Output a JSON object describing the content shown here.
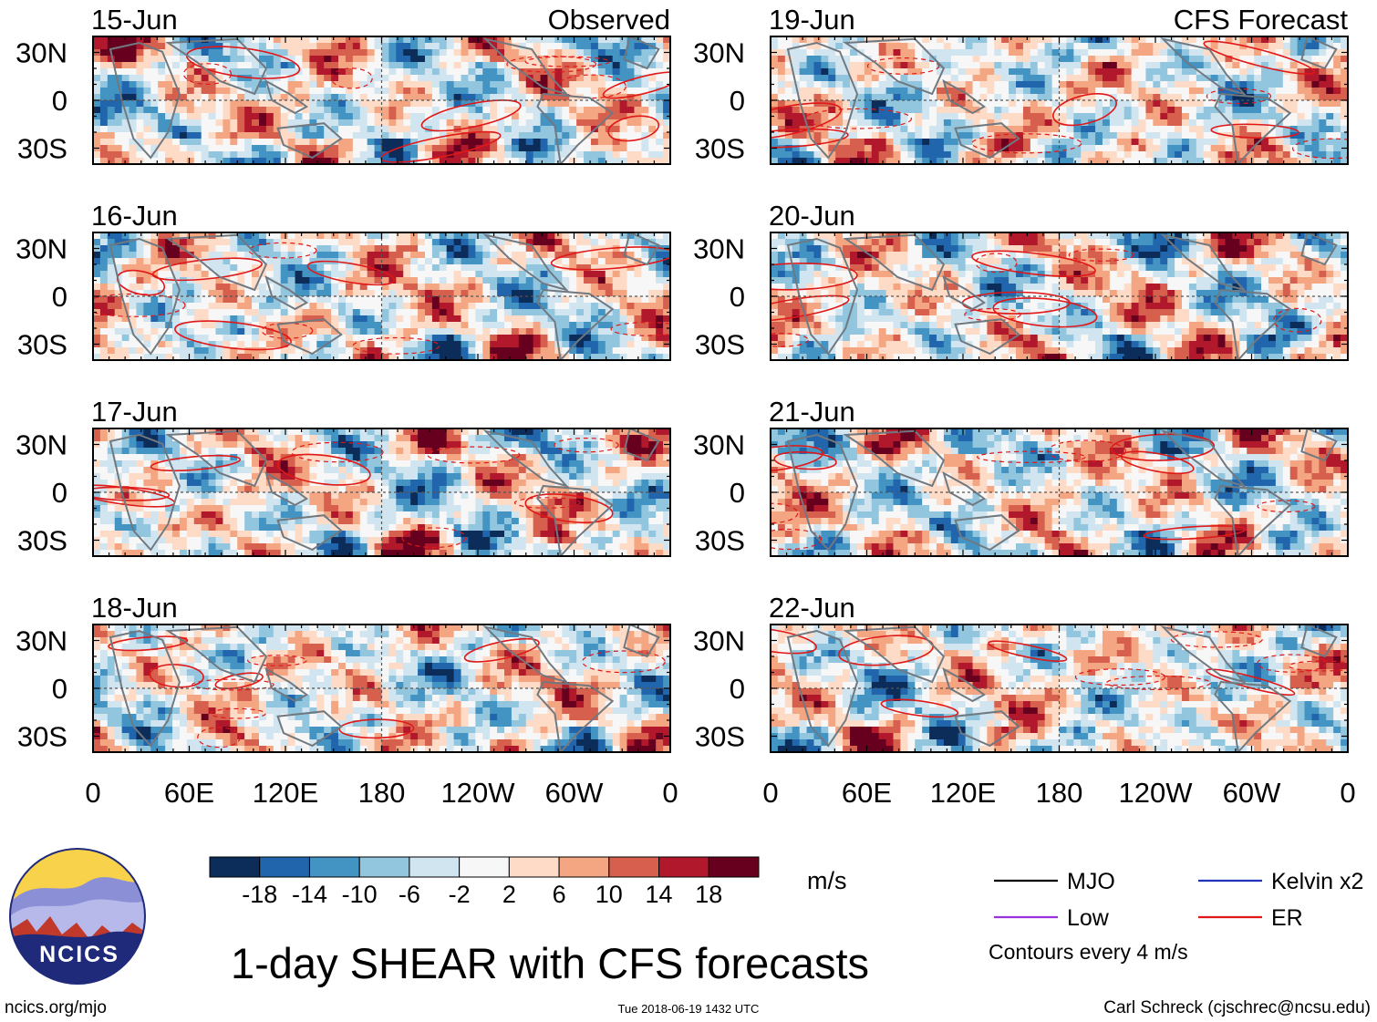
{
  "chart_data": {
    "type": "heatmap",
    "title": "1-day SHEAR with CFS forecasts",
    "variable": "SHEAR",
    "units": "m/s",
    "panels": [
      {
        "date": "15-Jun",
        "label": "Observed"
      },
      {
        "date": "16-Jun",
        "label": ""
      },
      {
        "date": "17-Jun",
        "label": ""
      },
      {
        "date": "18-Jun",
        "label": ""
      },
      {
        "date": "19-Jun",
        "label": "CFS Forecast"
      },
      {
        "date": "20-Jun",
        "label": ""
      },
      {
        "date": "21-Jun",
        "label": ""
      },
      {
        "date": "22-Jun",
        "label": ""
      }
    ],
    "xticks": [
      "0",
      "60E",
      "120E",
      "180",
      "120W",
      "60W",
      "0"
    ],
    "xlim_deg_east": [
      0,
      360
    ],
    "yticks": [
      "30N",
      "0",
      "30S"
    ],
    "ylim": [
      -40,
      40
    ],
    "colorbar": {
      "levels": [
        -18,
        -14,
        -10,
        -6,
        -2,
        2,
        6,
        10,
        14,
        18
      ],
      "labels": [
        "-18",
        "-14",
        "-10",
        "-6",
        "-2",
        "2",
        "6",
        "10",
        "14",
        "18"
      ],
      "colors": [
        "#0c2d5a",
        "#2166ac",
        "#4393c3",
        "#92c5de",
        "#d1e5f0",
        "#f7f7f7",
        "#fddbc7",
        "#f4a582",
        "#d6604d",
        "#b2182b",
        "#67001f"
      ]
    },
    "legend": [
      {
        "label": "MJO",
        "color": "#000000"
      },
      {
        "label": "Kelvin x2",
        "color": "#2233bb"
      },
      {
        "label": "Low",
        "color": "#9933dd"
      },
      {
        "label": "ER",
        "color": "#e01818"
      }
    ],
    "contour_note": "Contours every 4 m/s"
  },
  "branding": {
    "logo_text": "NCICS",
    "site": "ncics.org/mjo",
    "timestamp": "Tue 2018-06-19 1432 UTC",
    "author": "Carl Schreck (cjschrec@ncsu.edu)"
  }
}
